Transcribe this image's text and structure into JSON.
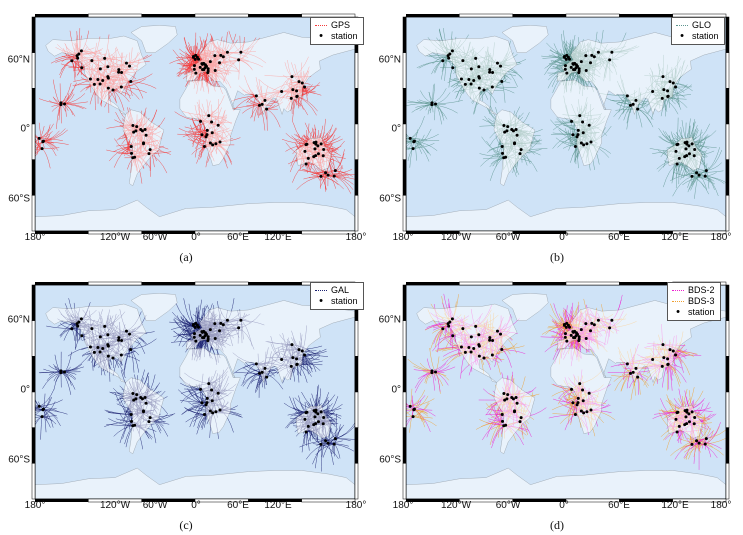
{
  "ocean_color": "#cfe3f7",
  "land_color": "#ffffff",
  "station_color": "#000000",
  "x_ticks": [
    "180°",
    "120°W",
    "60°W",
    "0°",
    "60°E",
    "120°E",
    "180°"
  ],
  "y_ticks": [
    "60°N",
    "0°",
    "60°S"
  ],
  "panels": [
    {
      "caption": "(a)",
      "system": "GPS",
      "color": "#f53b3b",
      "legend": [
        {
          "label": "GPS",
          "symbol": "line",
          "color": "#f53b3b"
        },
        {
          "label": "station",
          "symbol": "dot",
          "color": "#000000"
        }
      ]
    },
    {
      "caption": "(b)",
      "system": "GLO",
      "color": "#5e9690",
      "legend": [
        {
          "label": "GLO",
          "symbol": "line",
          "color": "#5e9690"
        },
        {
          "label": "station",
          "symbol": "dot",
          "color": "#000000"
        }
      ]
    },
    {
      "caption": "(c)",
      "system": "GAL",
      "color": "#1c2272",
      "legend": [
        {
          "label": "GAL",
          "symbol": "line",
          "color": "#1c2272"
        },
        {
          "label": "station",
          "symbol": "dot",
          "color": "#000000"
        }
      ]
    },
    {
      "caption": "(d)",
      "system": "BDS",
      "color": "#ee1fd2",
      "legend": [
        {
          "label": "BDS-2",
          "symbol": "line",
          "color": "#ee1fd2"
        },
        {
          "label": "BDS-3",
          "symbol": "line",
          "color": "#f0a133"
        },
        {
          "label": "station",
          "symbol": "dot",
          "color": "#000000"
        }
      ]
    }
  ]
}
